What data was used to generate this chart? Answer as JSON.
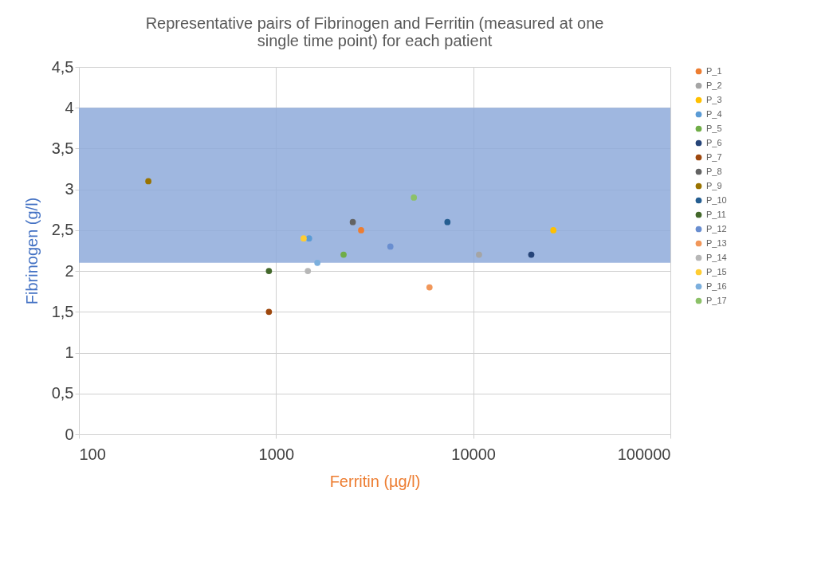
{
  "chart_data": {
    "type": "scatter",
    "title": "Representative pairs of Fibrinogen and Ferritin (measured at one single time point) for each patient",
    "xlabel": "Ferritin (µg/l)",
    "ylabel": "Fibrinogen (g/l)",
    "log": "x",
    "xlim": [
      100,
      100000
    ],
    "xticks": [
      100,
      1000,
      10000,
      100000
    ],
    "ylim": [
      0,
      4.5
    ],
    "yticks": [
      0,
      {
        "value": 0.5,
        "label": "0,5"
      },
      1,
      {
        "value": 1.5,
        "label": "1,5"
      },
      2,
      {
        "value": 2.5,
        "label": "2,5"
      },
      3,
      {
        "value": 3.5,
        "label": "3,5"
      },
      4,
      {
        "value": 4.5,
        "label": "4,5"
      }
    ],
    "grid": true,
    "legend": "right",
    "marker": "circle",
    "bands": [
      {
        "axis": "y",
        "from": 2.1,
        "to": 4,
        "color": "#8eaadb"
      }
    ],
    "series": [
      {
        "name": "P_1",
        "color": "#ed7d31",
        "x": [
          2700
        ],
        "values": [
          2.5
        ]
      },
      {
        "name": "P_2",
        "color": "#a5a5a5",
        "x": [
          10700
        ],
        "values": [
          2.2
        ]
      },
      {
        "name": "P_3",
        "color": "#ffc000",
        "x": [
          25500
        ],
        "values": [
          2.5
        ]
      },
      {
        "name": "P_4",
        "color": "#5b9bd5",
        "x": [
          1470
        ],
        "values": [
          2.4
        ]
      },
      {
        "name": "P_5",
        "color": "#70ad47",
        "x": [
          2200
        ],
        "values": [
          2.2
        ]
      },
      {
        "name": "P_6",
        "color": "#264478",
        "x": [
          19700
        ],
        "values": [
          2.2
        ]
      },
      {
        "name": "P_7",
        "color": "#9e480e",
        "x": [
          920
        ],
        "values": [
          1.5
        ]
      },
      {
        "name": "P_8",
        "color": "#636363",
        "x": [
          2450
        ],
        "values": [
          2.6
        ]
      },
      {
        "name": "P_9",
        "color": "#997300",
        "x": [
          225
        ],
        "values": [
          3.1
        ]
      },
      {
        "name": "P_10",
        "color": "#255e91",
        "x": [
          7400
        ],
        "values": [
          2.6
        ]
      },
      {
        "name": "P_11",
        "color": "#43682b",
        "x": [
          920
        ],
        "values": [
          2.0
        ]
      },
      {
        "name": "P_12",
        "color": "#698ed0",
        "x": [
          3800
        ],
        "values": [
          2.3
        ]
      },
      {
        "name": "P_13",
        "color": "#f1975a",
        "x": [
          6000
        ],
        "values": [
          1.8
        ]
      },
      {
        "name": "P_14",
        "color": "#b7b7b7",
        "x": [
          1450
        ],
        "values": [
          2.0
        ]
      },
      {
        "name": "P_15",
        "color": "#ffcd33",
        "x": [
          1380
        ],
        "values": [
          2.4
        ]
      },
      {
        "name": "P_16",
        "color": "#7cafdd",
        "x": [
          1620
        ],
        "values": [
          2.1
        ]
      },
      {
        "name": "P_17",
        "color": "#8cc168",
        "x": [
          5000
        ],
        "values": [
          2.9
        ]
      }
    ]
  }
}
